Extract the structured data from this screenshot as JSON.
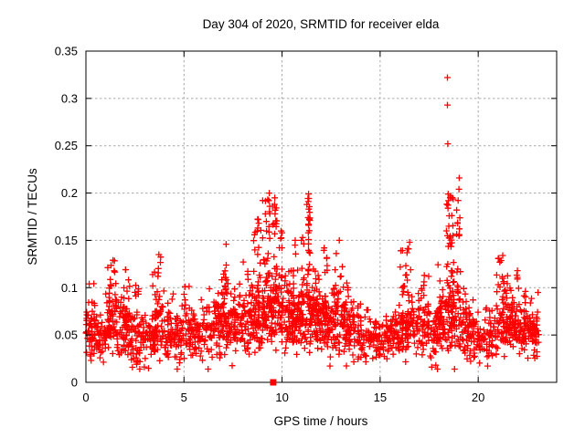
{
  "chart_data": {
    "type": "scatter",
    "title": "Day 304 of 2020, SRMTID for receiver elda",
    "xlabel": "GPS time / hours",
    "ylabel": "SRMTID / TECUs",
    "xlim": [
      0,
      24
    ],
    "ylim": [
      0,
      0.35
    ],
    "xticks": [
      0,
      5,
      10,
      15,
      20
    ],
    "xtick_labels": [
      "0",
      "5",
      "10",
      "15",
      "20"
    ],
    "yticks": [
      0,
      0.05,
      0.1,
      0.15,
      0.2,
      0.25,
      0.3,
      0.35
    ],
    "ytick_labels": [
      "0",
      "0.05",
      "0.1",
      "0.15",
      "0.2",
      "0.25",
      "0.3",
      "0.35"
    ],
    "grid": true,
    "legend": "none",
    "marker": "plus",
    "marker_size_px": 7,
    "series_color": "#ff0000",
    "grid_color": "#a6a6a6",
    "border_color": "#000000",
    "seed": 304,
    "baseline_segments": [
      [
        0.0,
        0.5,
        45,
        0.048,
        0.014
      ],
      [
        0.5,
        1.0,
        45,
        0.047,
        0.012
      ],
      [
        1.0,
        1.6,
        55,
        0.058,
        0.016
      ],
      [
        1.6,
        2.2,
        50,
        0.055,
        0.016
      ],
      [
        2.2,
        3.0,
        60,
        0.046,
        0.013
      ],
      [
        3.0,
        3.5,
        40,
        0.05,
        0.014
      ],
      [
        3.5,
        4.0,
        45,
        0.055,
        0.016
      ],
      [
        4.0,
        5.0,
        70,
        0.046,
        0.012
      ],
      [
        5.0,
        6.0,
        70,
        0.05,
        0.013
      ],
      [
        6.0,
        7.0,
        70,
        0.056,
        0.014
      ],
      [
        7.0,
        8.0,
        75,
        0.058,
        0.015
      ],
      [
        8.0,
        9.0,
        80,
        0.062,
        0.016
      ],
      [
        9.0,
        10.0,
        90,
        0.068,
        0.018
      ],
      [
        10.0,
        11.0,
        80,
        0.06,
        0.016
      ],
      [
        11.0,
        12.0,
        90,
        0.066,
        0.017
      ],
      [
        12.0,
        13.0,
        85,
        0.06,
        0.016
      ],
      [
        13.0,
        14.0,
        75,
        0.055,
        0.014
      ],
      [
        14.0,
        15.0,
        75,
        0.047,
        0.012
      ],
      [
        15.0,
        16.0,
        75,
        0.05,
        0.012
      ],
      [
        16.0,
        17.0,
        80,
        0.058,
        0.015
      ],
      [
        17.0,
        18.0,
        70,
        0.054,
        0.014
      ],
      [
        18.0,
        19.0,
        85,
        0.066,
        0.018
      ],
      [
        19.0,
        20.0,
        75,
        0.051,
        0.014
      ],
      [
        20.0,
        21.0,
        70,
        0.047,
        0.013
      ],
      [
        21.0,
        22.0,
        80,
        0.057,
        0.014
      ],
      [
        22.0,
        23.1,
        85,
        0.05,
        0.013
      ]
    ],
    "clusters": [
      [
        0.25,
        0.25,
        12,
        0.06,
        0.105
      ],
      [
        1.35,
        0.25,
        25,
        0.07,
        0.13
      ],
      [
        2.0,
        0.25,
        18,
        0.068,
        0.12
      ],
      [
        2.6,
        0.15,
        8,
        0.07,
        0.105
      ],
      [
        3.7,
        0.3,
        22,
        0.07,
        0.135
      ],
      [
        4.4,
        0.25,
        10,
        0.06,
        0.095
      ],
      [
        5.05,
        0.25,
        12,
        0.062,
        0.102
      ],
      [
        6.1,
        0.25,
        10,
        0.06,
        0.1
      ],
      [
        6.85,
        0.3,
        22,
        0.068,
        0.122
      ],
      [
        7.15,
        0.1,
        12,
        0.095,
        0.148
      ],
      [
        7.6,
        0.25,
        14,
        0.065,
        0.112
      ],
      [
        8.25,
        0.25,
        18,
        0.07,
        0.13
      ],
      [
        8.75,
        0.2,
        22,
        0.08,
        0.175
      ],
      [
        9.2,
        0.2,
        35,
        0.08,
        0.197
      ],
      [
        9.6,
        0.15,
        30,
        0.085,
        0.193
      ],
      [
        9.95,
        0.12,
        16,
        0.08,
        0.158
      ],
      [
        10.35,
        0.2,
        14,
        0.065,
        0.118
      ],
      [
        10.65,
        0.2,
        16,
        0.07,
        0.148
      ],
      [
        11.05,
        0.12,
        14,
        0.08,
        0.152
      ],
      [
        11.33,
        0.1,
        26,
        0.09,
        0.196
      ],
      [
        11.7,
        0.25,
        20,
        0.07,
        0.14
      ],
      [
        12.15,
        0.15,
        15,
        0.07,
        0.143
      ],
      [
        12.9,
        0.3,
        22,
        0.075,
        0.148
      ],
      [
        13.3,
        0.2,
        12,
        0.06,
        0.108
      ],
      [
        16.35,
        0.4,
        26,
        0.068,
        0.142
      ],
      [
        17.2,
        0.3,
        15,
        0.06,
        0.115
      ],
      [
        18.05,
        0.2,
        15,
        0.065,
        0.125
      ],
      [
        18.55,
        0.22,
        48,
        0.08,
        0.2
      ],
      [
        19.0,
        0.1,
        14,
        0.085,
        0.195
      ],
      [
        19.3,
        0.2,
        12,
        0.06,
        0.11
      ],
      [
        21.2,
        0.3,
        26,
        0.068,
        0.133
      ],
      [
        21.9,
        0.3,
        20,
        0.06,
        0.12
      ],
      [
        22.6,
        0.3,
        16,
        0.055,
        0.1
      ]
    ],
    "outliers": [
      [
        18.43,
        0.322
      ],
      [
        18.43,
        0.293
      ],
      [
        18.45,
        0.252
      ],
      [
        19.03,
        0.216
      ],
      [
        19.02,
        0.204
      ],
      [
        18.47,
        0.199
      ],
      [
        18.48,
        0.192
      ],
      [
        18.9,
        0.182
      ],
      [
        18.46,
        0.184
      ],
      [
        18.52,
        0.176
      ],
      [
        18.95,
        0.168
      ],
      [
        18.5,
        0.165
      ],
      [
        19.03,
        0.156
      ],
      [
        9.35,
        0.2
      ],
      [
        9.33,
        0.192
      ],
      [
        9.37,
        0.186
      ],
      [
        9.15,
        0.178
      ],
      [
        9.2,
        0.17
      ],
      [
        9.63,
        0.195
      ],
      [
        9.62,
        0.188
      ],
      [
        9.64,
        0.178
      ],
      [
        9.6,
        0.168
      ],
      [
        11.35,
        0.199
      ],
      [
        11.34,
        0.191
      ],
      [
        11.36,
        0.183
      ],
      [
        11.33,
        0.174
      ],
      [
        11.35,
        0.166
      ],
      [
        11.34,
        0.158
      ],
      [
        9.95,
        0.16
      ],
      [
        9.93,
        0.152
      ],
      [
        8.78,
        0.172
      ],
      [
        8.76,
        0.163
      ],
      [
        10.67,
        0.15
      ],
      [
        11.05,
        0.153
      ],
      [
        12.92,
        0.15
      ],
      [
        16.5,
        0.148
      ],
      [
        16.45,
        0.141
      ],
      [
        7.15,
        0.146
      ],
      [
        3.72,
        0.135
      ],
      [
        21.25,
        0.134
      ],
      [
        1.38,
        0.129
      ],
      [
        12.15,
        0.142
      ],
      [
        10.0,
        0.158
      ],
      [
        2.02,
        0.119
      ],
      [
        21.1,
        0.127
      ],
      [
        22.0,
        0.118
      ],
      [
        17.25,
        0.113
      ],
      [
        13.3,
        0.105
      ],
      [
        0.17,
        0.104
      ],
      [
        5.05,
        0.101
      ],
      [
        23.05,
        0.095
      ]
    ],
    "special_point": {
      "x": 9.55,
      "y": 0,
      "shape": "filled-square",
      "color": "#ff0000"
    }
  }
}
